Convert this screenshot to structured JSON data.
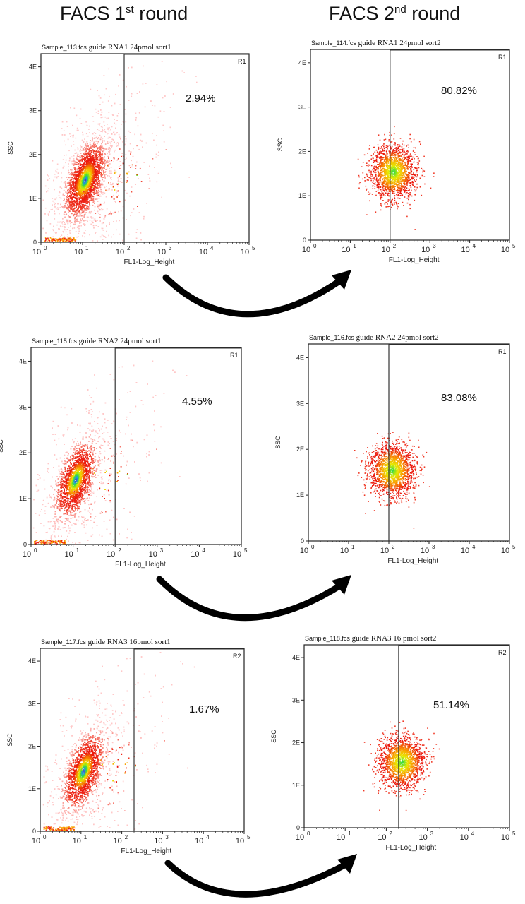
{
  "titles": {
    "round1": "FACS 1",
    "round1_sup": "st",
    "round1_tail": " round",
    "round2": "FACS 2",
    "round2_sup": "nd",
    "round2_tail": " round"
  },
  "chart_data": [
    {
      "type": "scatter",
      "file": "Sample_113.fcs",
      "title": "guide RNA1  24pmol sort1",
      "region": "R1",
      "percent": "2.94%",
      "gate_x": 100,
      "density": "broad",
      "xlabel": "FL1-Log_Height",
      "ylabel": "SSC",
      "xticks": [
        "10",
        "10",
        "10",
        "10",
        "10",
        "10"
      ],
      "xexp": [
        "0",
        "1",
        "2",
        "3",
        "4",
        "5"
      ],
      "yticks": [
        "0",
        "1E",
        "2E",
        "3E",
        "4E"
      ]
    },
    {
      "type": "scatter",
      "file": "Sample_114.fcs",
      "title": "guide RNA1  24pmol sort2",
      "region": "R1",
      "percent": "80.82%",
      "gate_x": 100,
      "density": "sorted",
      "xlabel": "FL1-Log_Height",
      "ylabel": "SSC",
      "xticks": [
        "10",
        "10",
        "10",
        "10",
        "10",
        "10"
      ],
      "xexp": [
        "0",
        "1",
        "2",
        "3",
        "4",
        "5"
      ],
      "yticks": [
        "0",
        "1E",
        "2E",
        "3E",
        "4E"
      ]
    },
    {
      "type": "scatter",
      "file": "Sample_115.fcs",
      "title": "guide RNA2  24pmol  sort1",
      "region": "R1",
      "percent": "4.55%",
      "gate_x": 100,
      "density": "broad",
      "xlabel": "FL1-Log_Height",
      "ylabel": "SSC",
      "xticks": [
        "10",
        "10",
        "10",
        "10",
        "10",
        "10"
      ],
      "xexp": [
        "0",
        "1",
        "2",
        "3",
        "4",
        "5"
      ],
      "yticks": [
        "0",
        "1E",
        "2E",
        "3E",
        "4E"
      ]
    },
    {
      "type": "scatter",
      "file": "Sample_116.fcs",
      "title": "guide RNA2  24pmol  sort2",
      "region": "R1",
      "percent": "83.08%",
      "gate_x": 100,
      "density": "sorted",
      "xlabel": "FL1-Log_Height",
      "ylabel": "SSC",
      "xticks": [
        "10",
        "10",
        "10",
        "10",
        "10",
        "10"
      ],
      "xexp": [
        "0",
        "1",
        "2",
        "3",
        "4",
        "5"
      ],
      "yticks": [
        "0",
        "1E",
        "2E",
        "3E",
        "4E"
      ]
    },
    {
      "type": "scatter",
      "file": "Sample_117.fcs",
      "title": "guide RNA3  16pmol  sort1",
      "region": "R2",
      "percent": "1.67%",
      "gate_x": 200,
      "density": "broad",
      "xlabel": "FL1-Log_Height",
      "ylabel": "SSC",
      "xticks": [
        "10",
        "10",
        "10",
        "10",
        "10",
        "10"
      ],
      "xexp": [
        "0",
        "1",
        "2",
        "3",
        "4",
        "5"
      ],
      "yticks": [
        "0",
        "1E",
        "2E",
        "3E",
        "4E"
      ]
    },
    {
      "type": "scatter",
      "file": "Sample_118.fcs",
      "title": "guide RNA3 16 pmol  sort2",
      "region": "R2",
      "percent": "51.14%",
      "gate_x": 200,
      "density": "sorted",
      "xlabel": "FL1-Log_Height",
      "ylabel": "SSC",
      "xticks": [
        "10",
        "10",
        "10",
        "10",
        "10",
        "10"
      ],
      "xexp": [
        "0",
        "1",
        "2",
        "3",
        "4",
        "5"
      ],
      "yticks": [
        "0",
        "1E",
        "2E",
        "3E",
        "4E"
      ]
    }
  ]
}
